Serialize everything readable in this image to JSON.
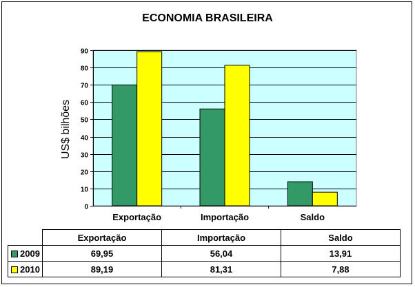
{
  "chart_data": {
    "type": "bar",
    "title": "ECONOMIA BRASILEIRA",
    "xlabel": "",
    "ylabel": "US$ bilhões",
    "categories": [
      "Exportação",
      "Importação",
      "Saldo"
    ],
    "series": [
      {
        "name": "2009",
        "values": [
          69.95,
          56.04,
          13.91
        ],
        "labels": [
          "69,95",
          "56,04",
          "13,91"
        ],
        "color": "#339966"
      },
      {
        "name": "2010",
        "values": [
          89.19,
          81.31,
          7.88
        ],
        "labels": [
          "89,19",
          "81,31",
          "7,88"
        ],
        "color": "#ffff00"
      }
    ],
    "ylim": [
      0,
      90
    ],
    "yticks": [
      "0",
      "10",
      "20",
      "30",
      "40",
      "50",
      "60",
      "70",
      "80",
      "90"
    ],
    "grid": true,
    "plot_background": "#ccffff",
    "legend": "data-table"
  }
}
